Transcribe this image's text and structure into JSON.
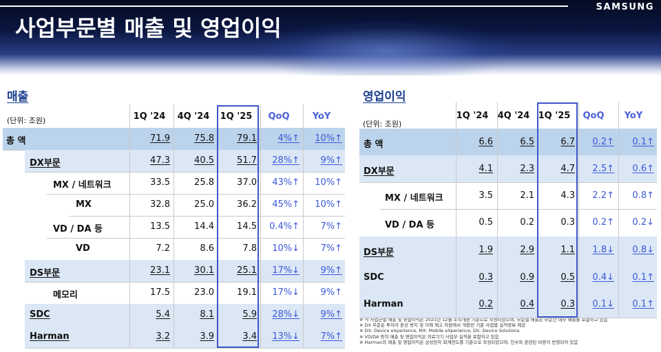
{
  "header": {
    "title": "사업부문별 매출 및 영업이익",
    "logo": "SAMSUNG"
  },
  "columns": [
    "1Q '24",
    "4Q '24",
    "1Q '25",
    "QoQ",
    "YoY"
  ],
  "revenue": {
    "title": "매출",
    "unit": "(단위: 조원)",
    "rows": [
      {
        "label": "총 액",
        "v": [
          "71.9",
          "75.8",
          "79.1",
          "4%↑",
          "10%↑"
        ]
      },
      {
        "label": "DX부문",
        "v": [
          "47.3",
          "40.5",
          "51.7",
          "28%↑",
          "9%↑"
        ]
      },
      {
        "label": "MX / 네트워크",
        "v": [
          "33.5",
          "25.8",
          "37.0",
          "43%↑",
          "10%↑"
        ]
      },
      {
        "label": "MX",
        "v": [
          "32.8",
          "25.0",
          "36.2",
          "45%↑",
          "10%↑"
        ]
      },
      {
        "label": "VD / DA 등",
        "v": [
          "13.5",
          "14.4",
          "14.5",
          "0.4%↑",
          "7%↑"
        ]
      },
      {
        "label": "VD",
        "v": [
          "7.2",
          "8.6",
          "7.8",
          "10%↓",
          "7%↑"
        ]
      },
      {
        "label": "DS부문",
        "v": [
          "23.1",
          "30.1",
          "25.1",
          "17%↓",
          "9%↑"
        ]
      },
      {
        "label": "메모리",
        "v": [
          "17.5",
          "23.0",
          "19.1",
          "17%↓",
          "9%↑"
        ]
      },
      {
        "label": "SDC",
        "v": [
          "5.4",
          "8.1",
          "5.9",
          "28%↓",
          "9%↑"
        ]
      },
      {
        "label": "Harman",
        "v": [
          "3.2",
          "3.9",
          "3.4",
          "13%↓",
          "7%↑"
        ]
      }
    ]
  },
  "profit": {
    "title": "영업이익",
    "unit": "(단위: 조원)",
    "rows": [
      {
        "label": "총 액",
        "v": [
          "6.6",
          "6.5",
          "6.7",
          "0.2↑",
          "0.1↑"
        ]
      },
      {
        "label": "DX부문",
        "v": [
          "4.1",
          "2.3",
          "4.7",
          "2.5↑",
          "0.6↑"
        ]
      },
      {
        "label": "MX / 네트워크",
        "v": [
          "3.5",
          "2.1",
          "4.3",
          "2.2↑",
          "0.8↑"
        ]
      },
      {
        "label": "VD / DA 등",
        "v": [
          "0.5",
          "0.2",
          "0.3",
          "0.2↑",
          "0.2↓"
        ]
      },
      {
        "label": "DS부문",
        "v": [
          "1.9",
          "2.9",
          "1.1",
          "1.8↓",
          "0.8↓"
        ]
      },
      {
        "label": "SDC",
        "v": [
          "0.3",
          "0.9",
          "0.5",
          "0.4↓",
          "0.1↑"
        ]
      },
      {
        "label": "Harman",
        "v": [
          "0.2",
          "0.4",
          "0.3",
          "0.1↓",
          "0.1↑"
        ]
      }
    ]
  },
  "notes": [
    "※ 각 사업군별 매출 및 영업이익은 2021년 12월 조직개편 기준으로 작성되었으며, 부문별 매출은 부문간 내부 매출을 포함하고 있음",
    "※ DX 부문은 투자자 혼선 방지 및 이해 제고 차원에서 개편전 기준 사업별 실적정보 제공",
    "※ DX: Device eXperience, MX: Mobile eXperience, DS: Device Solutions",
    "※ VD/DA 등의 매출 및 영업이익은 의료기기 사업부 실적을 포함하고 있음",
    "※ Harman의 매출 및 영업이익은 삼성전자 회계연도를 기준으로 작성되었으며, 인수와 관련된 비용이 반영되어 있음"
  ],
  "colors": {
    "accent": "#3a58d8",
    "band_dark": "#bcd3ec",
    "band_light": "#dbe7f5",
    "box": "#3d55c8"
  }
}
